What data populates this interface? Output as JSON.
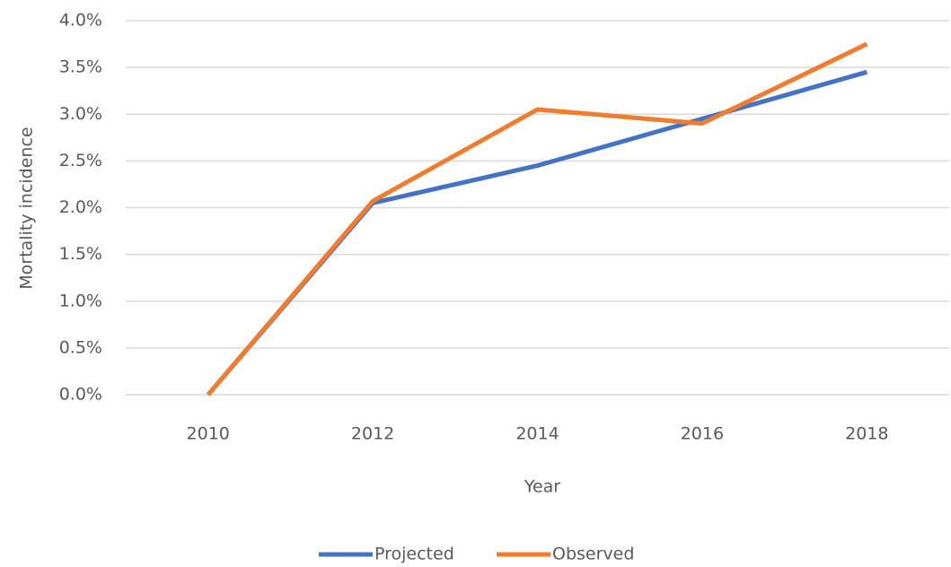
{
  "chart_data": {
    "type": "line",
    "categories": [
      "2010",
      "2012",
      "2014",
      "2016",
      "2018"
    ],
    "x_label": "Year",
    "y_label": "Mortality incidence",
    "series": [
      {
        "name": "Projected",
        "color": "#4472c4",
        "values": [
          0,
          2.05,
          2.45,
          2.95,
          3.45
        ]
      },
      {
        "name": "Observed",
        "color": "#ed7d31",
        "values": [
          0,
          2.07,
          3.05,
          2.9,
          3.75
        ]
      }
    ],
    "ylim": [
      0,
      4
    ],
    "yticks": [
      {
        "value": 0,
        "label": "0.0%"
      },
      {
        "value": 0.5,
        "label": "0.5%"
      },
      {
        "value": 1,
        "label": "1.0%"
      },
      {
        "value": 1.5,
        "label": "1.5%"
      },
      {
        "value": 2,
        "label": "2.0%"
      },
      {
        "value": 2.5,
        "label": "2.5%"
      },
      {
        "value": 3,
        "label": "3.0%"
      },
      {
        "value": 3.5,
        "label": "3.5%"
      },
      {
        "value": 4,
        "label": "4.0%"
      }
    ],
    "grid": true,
    "legend": "bottom"
  }
}
